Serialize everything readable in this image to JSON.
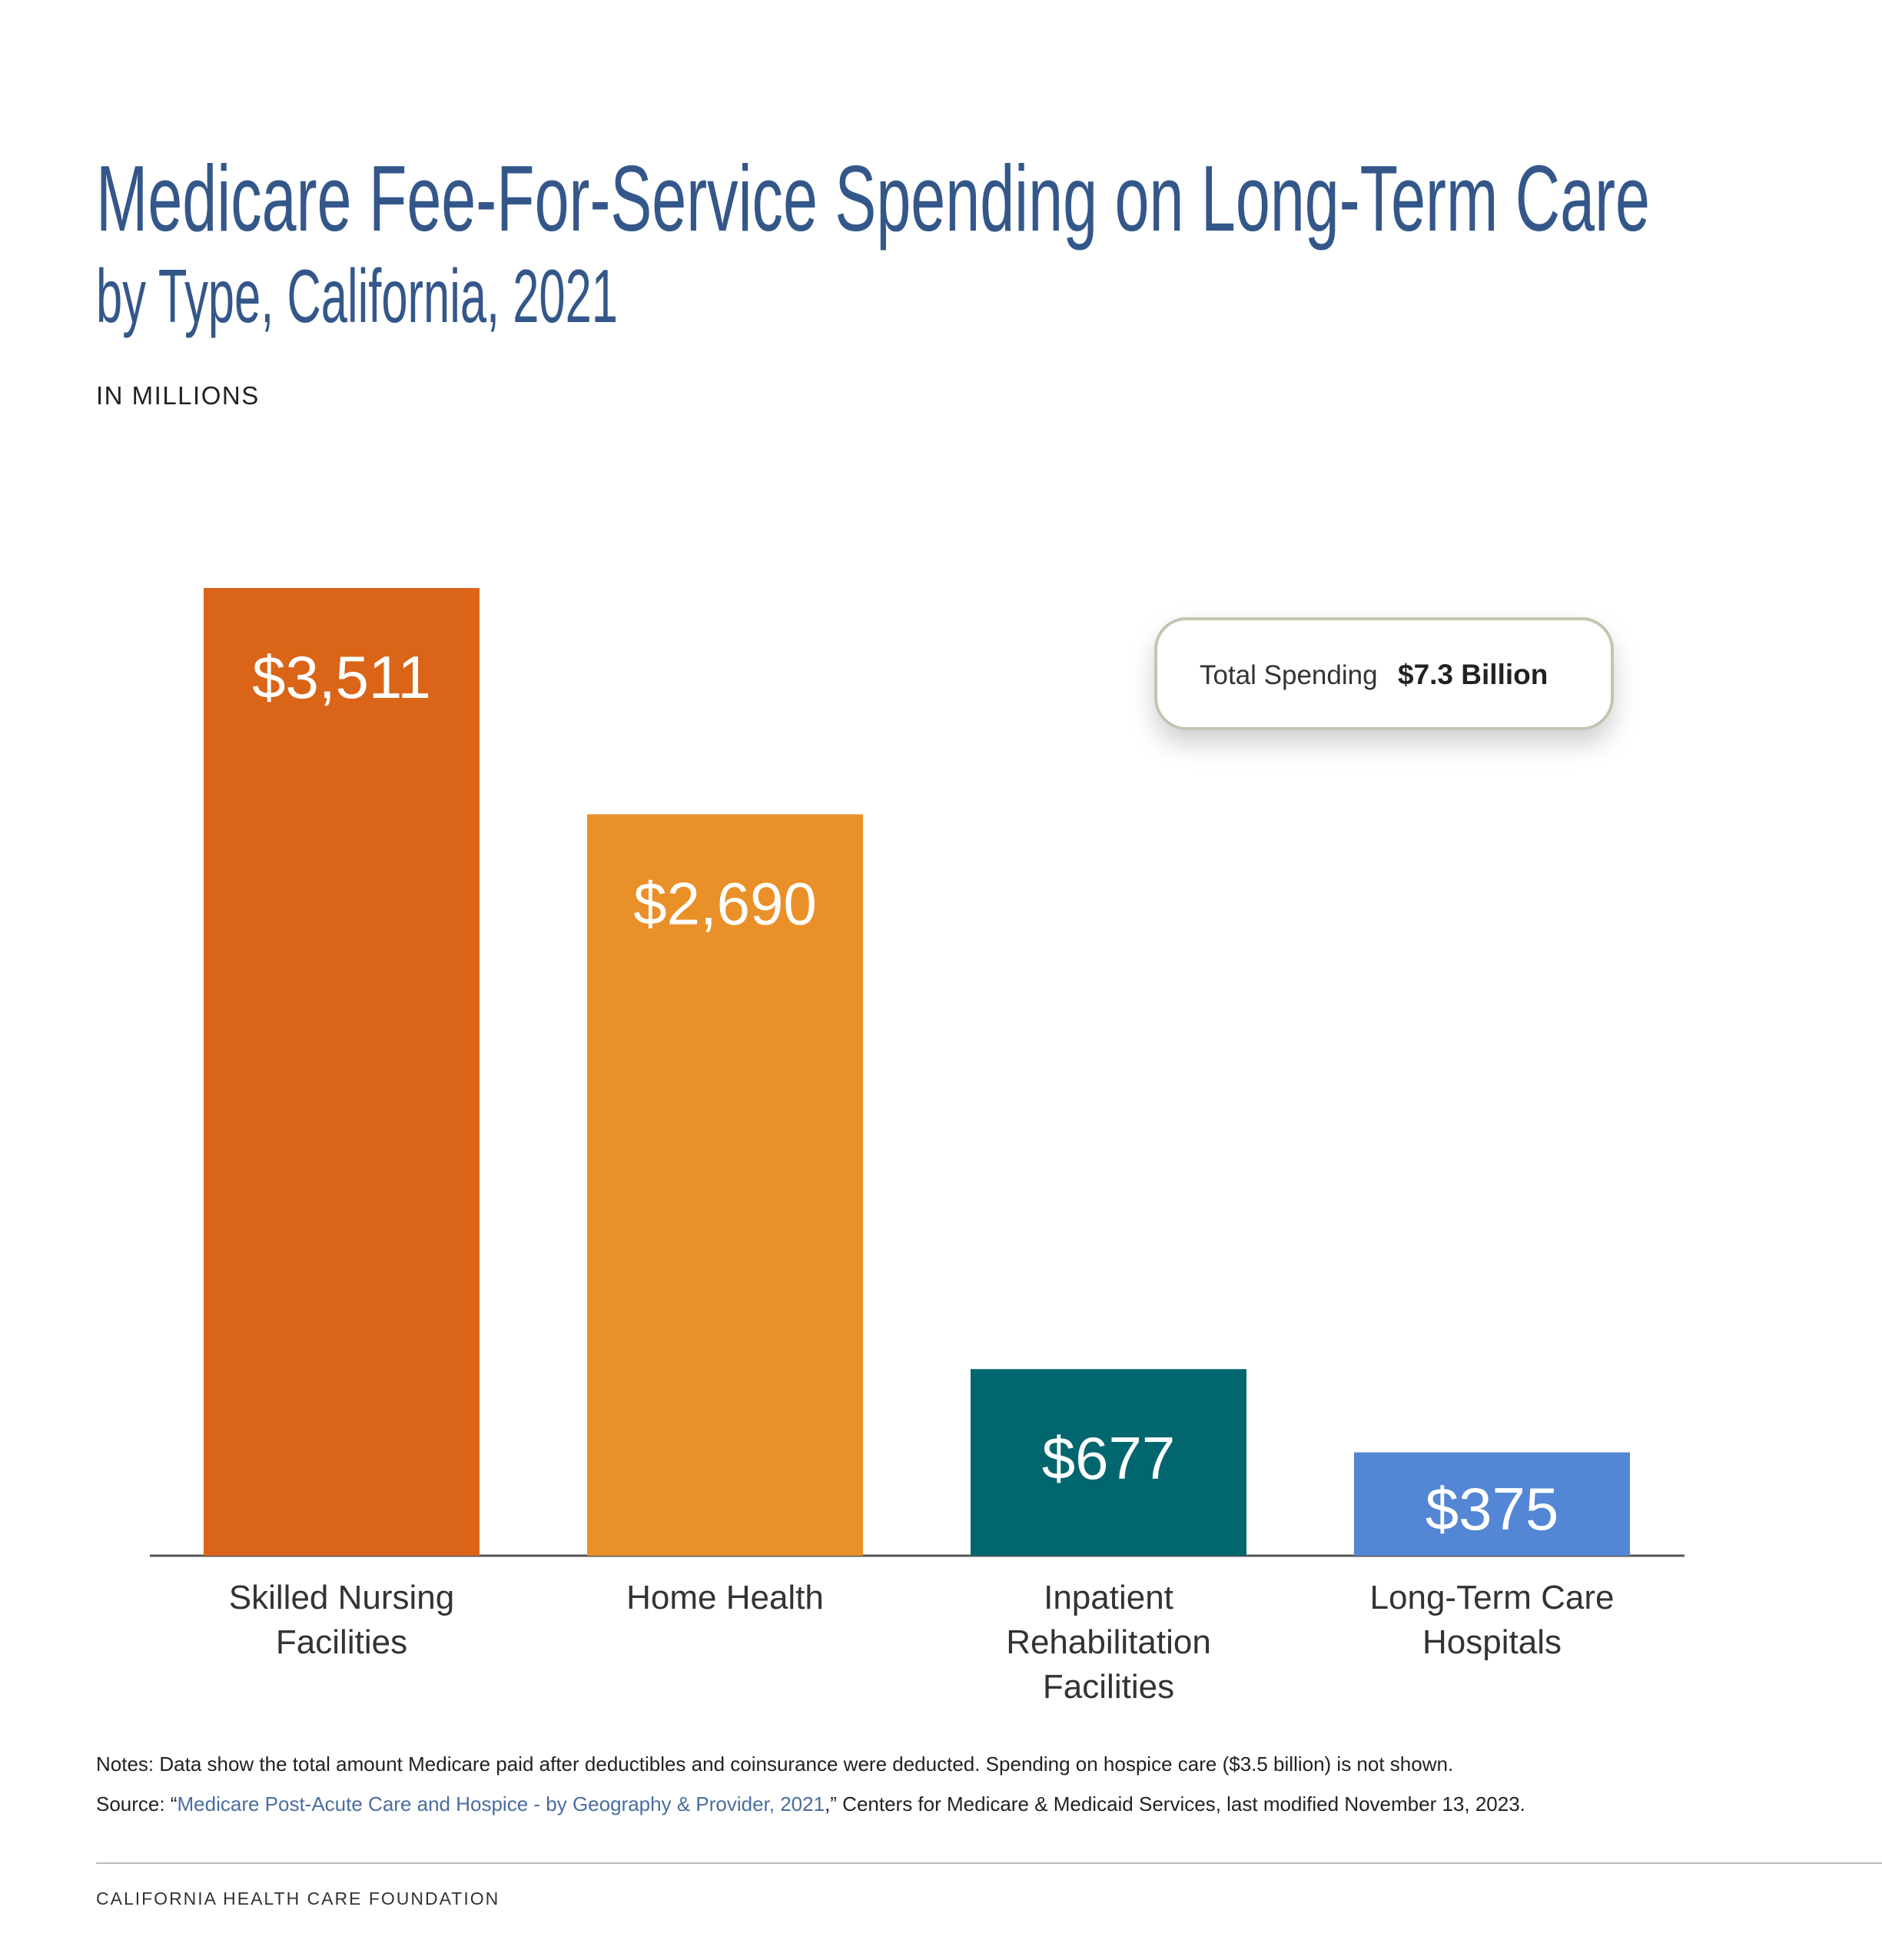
{
  "chart_data": {
    "type": "bar",
    "title": "Medicare Fee-For-Service Spending on Long-Term Care",
    "subtitle": "by Type, California, 2021",
    "units_label": "IN MILLIONS",
    "categories": [
      "Skilled Nursing Facilities",
      "Home Health",
      "Inpatient Rehabilitation Facilities",
      "Long-Term Care Hospitals"
    ],
    "values": [
      3511,
      2690,
      677,
      375
    ],
    "value_labels": [
      "$3,511",
      "$2,690",
      "$677",
      "$375"
    ],
    "colors": [
      "#da6518",
      "#ea9029",
      "#02666e",
      "#5386d4"
    ],
    "annotation": {
      "label": "Total Spending",
      "value": "$7.3 Billion"
    },
    "notes": "Notes: Data show the total amount Medicare paid after deductibles and coinsurance were deducted. Spending on hospice care ($3.5 billion) is not shown.",
    "source": {
      "prefix": "Source: “",
      "link": "Medicare Post-Acute Care and Hospice - by Geography & Provider, 2021",
      "suffix": ",” Centers for Medicare & Medicaid Services, last modified November 13, 2023."
    },
    "footer": "CALIFORNIA HEALTH CARE FOUNDATION"
  }
}
